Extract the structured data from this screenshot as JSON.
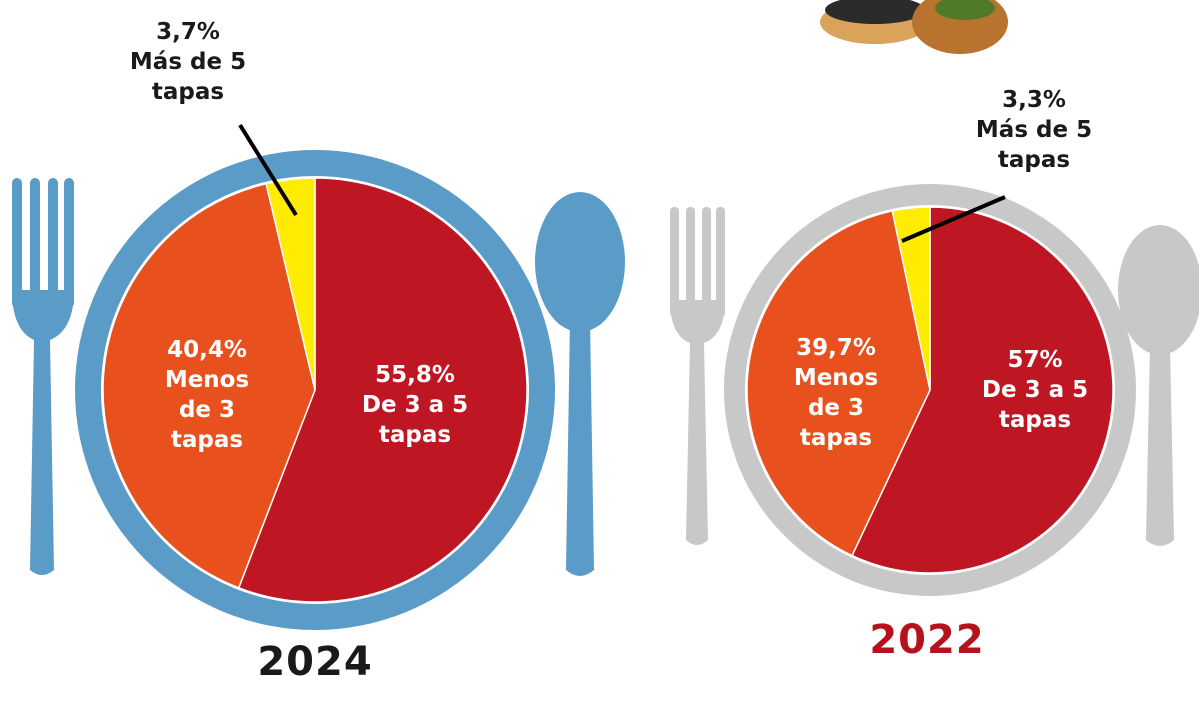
{
  "chart_data": [
    {
      "type": "pie",
      "title": "2024",
      "title_color": "#1a1a1a",
      "plate_color": "#5b9bc8",
      "categories": [
        "De 3 a 5 tapas",
        "Menos de 3 tapas",
        "Más de 5 tapas"
      ],
      "values": [
        55.8,
        40.4,
        3.7
      ],
      "value_labels": [
        "55,8%",
        "40,4%",
        "3,7%"
      ],
      "colors": [
        "#be1622",
        "#e8511e",
        "#ffec00"
      ]
    },
    {
      "type": "pie",
      "title": "2022",
      "title_color": "#b5121b",
      "plate_color": "#c8c8c8",
      "categories": [
        "De 3 a 5 tapas",
        "Menos de 3 tapas",
        "Más de 5 tapas"
      ],
      "values": [
        57,
        39.7,
        3.3
      ],
      "value_labels": [
        "57%",
        "39,7%",
        "3,3%"
      ],
      "colors": [
        "#be1622",
        "#e8511e",
        "#ffec00"
      ]
    }
  ]
}
